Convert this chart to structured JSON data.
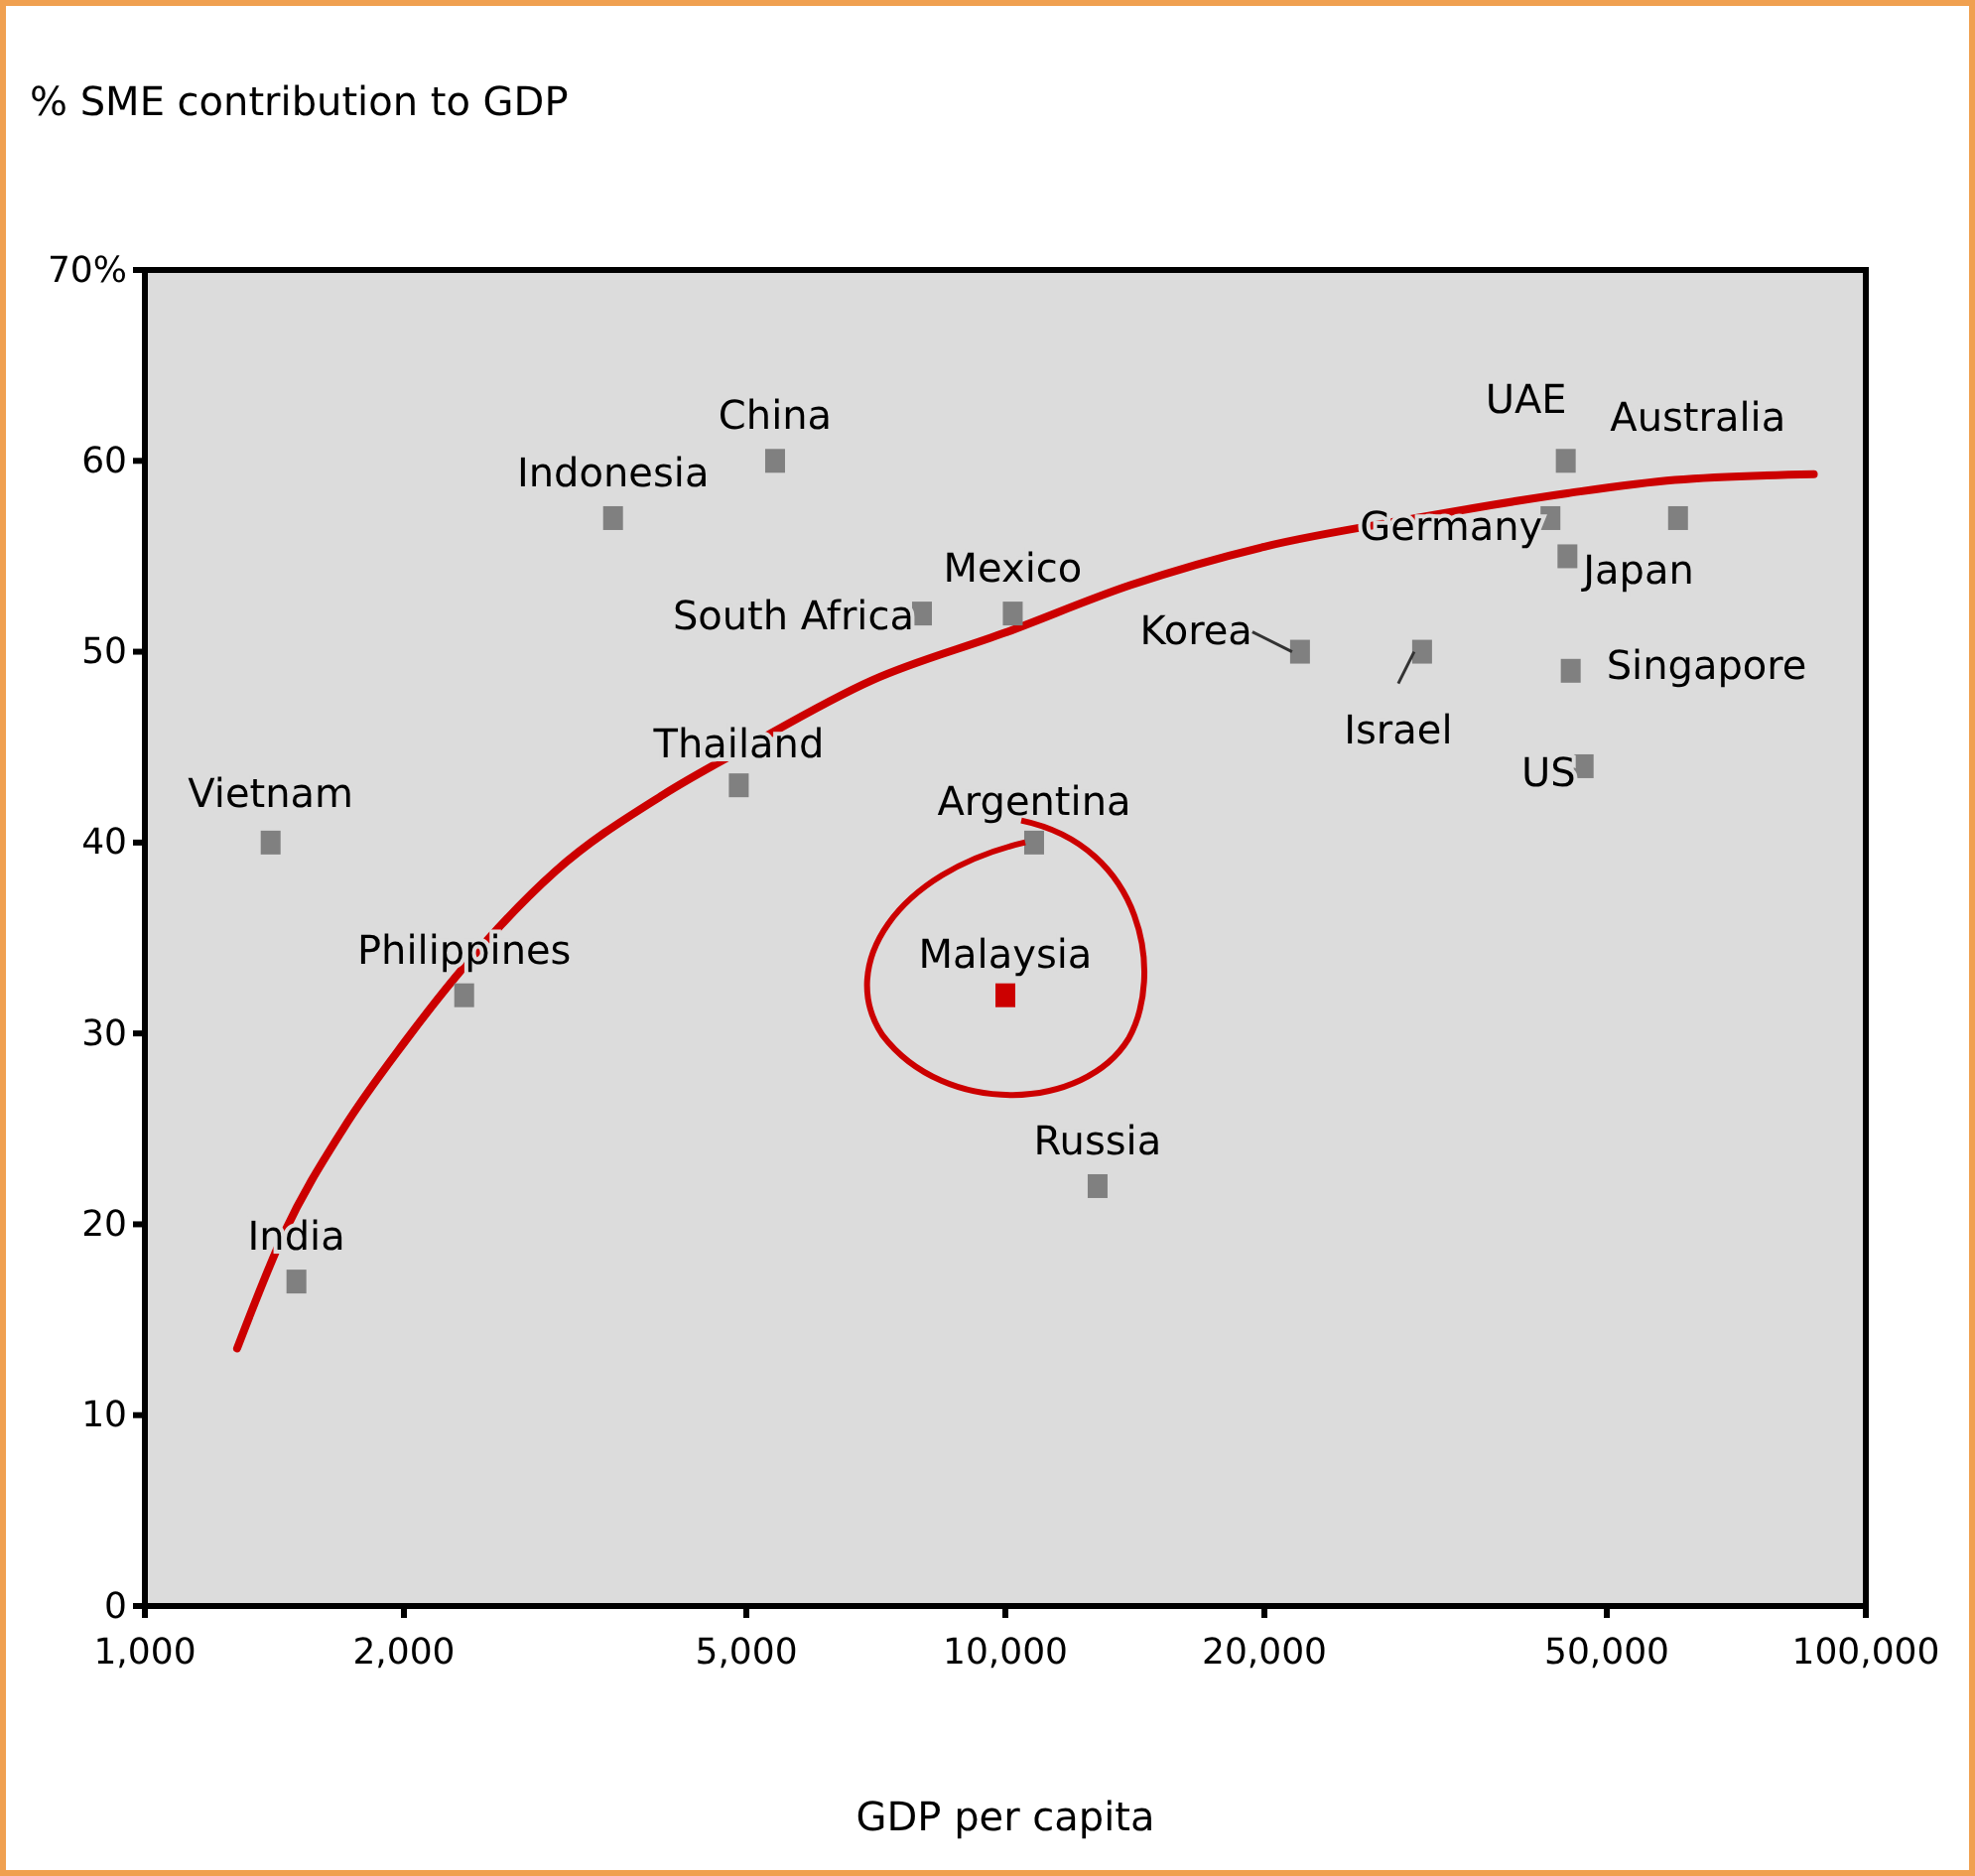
{
  "chart_data": {
    "type": "scatter",
    "ylabel": "% SME contribution to GDP",
    "xlabel": "GDP per capita",
    "log": "x",
    "xlim": [
      1000,
      100000
    ],
    "ylim": [
      0,
      70
    ],
    "xticks": [
      {
        "value": 1000,
        "label": "1,000"
      },
      {
        "value": 2000,
        "label": "2,000"
      },
      {
        "value": 5000,
        "label": "5,000"
      },
      {
        "value": 10000,
        "label": "10,000"
      },
      {
        "value": 20000,
        "label": "20,000"
      },
      {
        "value": 50000,
        "label": "50,000"
      },
      {
        "value": 100000,
        "label": "100,000"
      }
    ],
    "yticks": [
      0,
      10,
      20,
      30,
      40,
      50,
      60,
      {
        "value": 70,
        "label": "70%"
      }
    ],
    "grid": false,
    "series": [
      {
        "marker": "square",
        "x": [
          1400,
          1500,
          2350,
          3500,
          5400,
          4900,
          8000,
          10200,
          10000,
          10800,
          12800,
          22000,
          30500,
          44800,
          43000,
          45000,
          45400,
          47000,
          60500
        ],
        "values": [
          40,
          17,
          32,
          57,
          60,
          43,
          52,
          52,
          32,
          40,
          22,
          50,
          50,
          60,
          57,
          55,
          49,
          44,
          57
        ],
        "colors": [
          "#808080",
          "#808080",
          "#808080",
          "#808080",
          "#808080",
          "#808080",
          "#808080",
          "#808080",
          "#cc0000",
          "#808080",
          "#808080",
          "#808080",
          "#808080",
          "#808080",
          "#808080",
          "#808080",
          "#808080",
          "#808080",
          "#808080"
        ]
      },
      {
        "type": "line",
        "color": "#cc0000",
        "x": [
          1280,
          1450,
          1700,
          2000,
          2350,
          3000,
          4000,
          5000,
          7000,
          10000,
          14000,
          20000,
          30000,
          45000,
          60000,
          87000
        ],
        "values": [
          13.5,
          19.5,
          25,
          29.5,
          33.5,
          38.5,
          42.5,
          45,
          48.5,
          51,
          53.5,
          55.5,
          57,
          58.3,
          59,
          59.3
        ]
      }
    ],
    "annotations": [
      {
        "text": "Vietnam",
        "x": 1400,
        "y": 40
      },
      {
        "text": "India",
        "x": 1500,
        "y": 17
      },
      {
        "text": "Philippines",
        "x": 2350,
        "y": 32
      },
      {
        "text": "Indonesia",
        "x": 3500,
        "y": 57
      },
      {
        "text": "China",
        "x": 5400,
        "y": 60
      },
      {
        "text": "Thailand",
        "x": 4900,
        "y": 43
      },
      {
        "text": "South Africa",
        "x": 8000,
        "y": 52
      },
      {
        "text": "Mexico",
        "x": 10200,
        "y": 52
      },
      {
        "text": "Malaysia",
        "x": 10000,
        "y": 32
      },
      {
        "text": "Argentina",
        "x": 10800,
        "y": 40
      },
      {
        "text": "Russia",
        "x": 12800,
        "y": 22
      },
      {
        "text": "Korea",
        "x": 22000,
        "y": 50
      },
      {
        "text": "Israel",
        "x": 30500,
        "y": 50
      },
      {
        "text": "UAE",
        "x": 44800,
        "y": 60
      },
      {
        "text": "Germany",
        "x": 43000,
        "y": 57
      },
      {
        "text": "Japan",
        "x": 45000,
        "y": 55
      },
      {
        "text": "Singapore",
        "x": 45400,
        "y": 49
      },
      {
        "text": "US",
        "x": 47000,
        "y": 44
      },
      {
        "text": "Australia",
        "x": 60500,
        "y": 57
      }
    ]
  }
}
